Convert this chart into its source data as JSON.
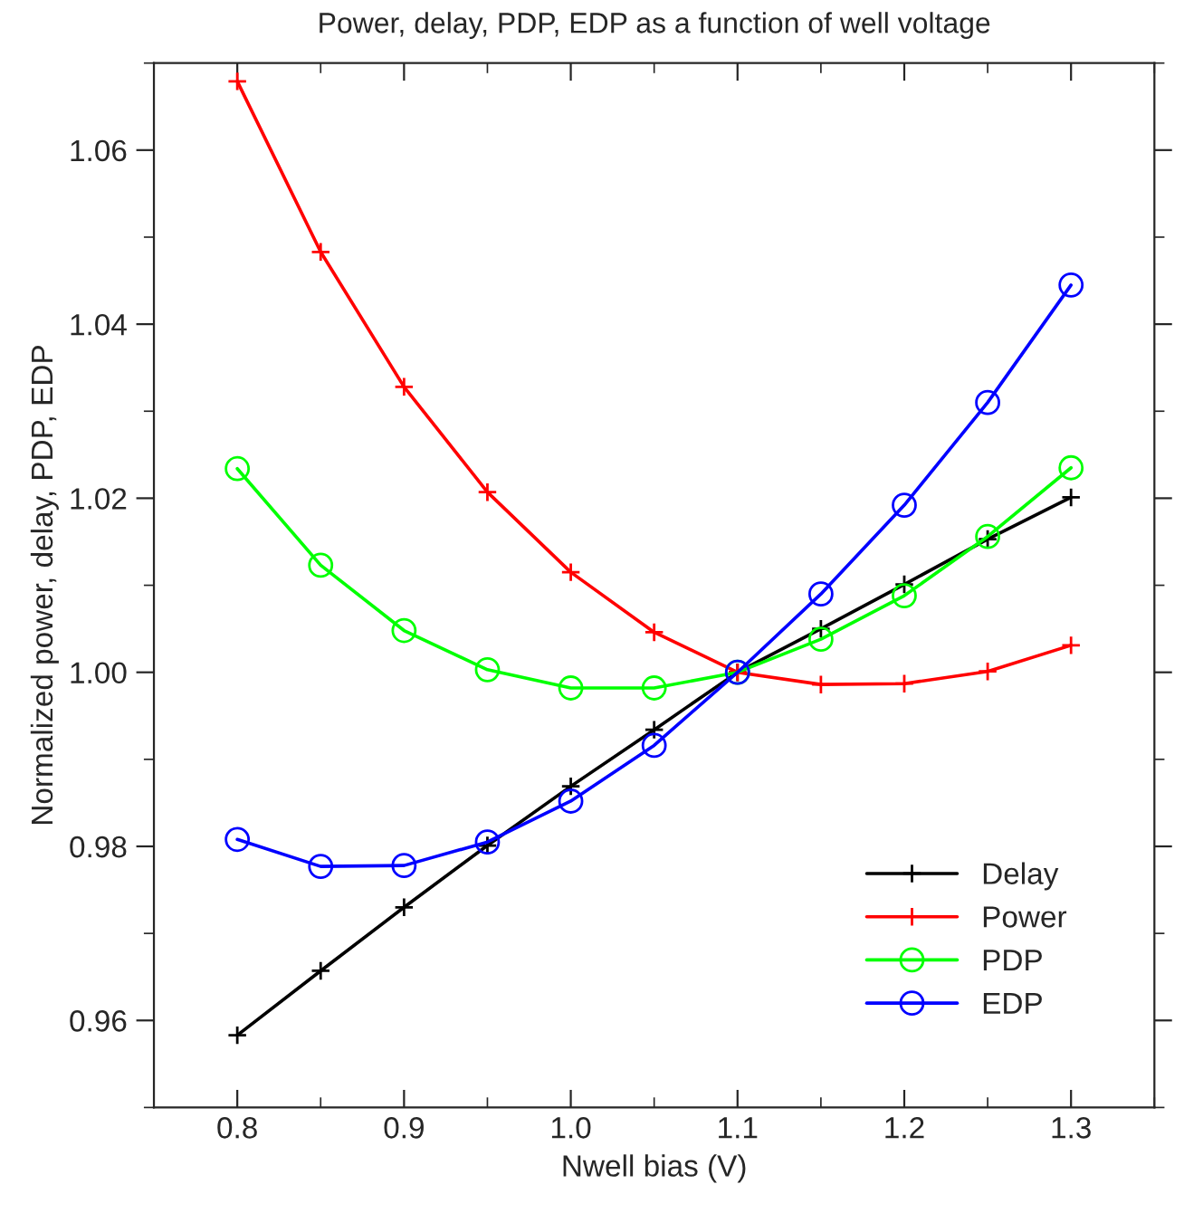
{
  "chart_data": {
    "type": "line",
    "title": "Power, delay, PDP, EDP as a function of well voltage",
    "xlabel": "Nwell bias (V)",
    "ylabel": "Normalized power, delay, PDP, EDP",
    "x": [
      0.8,
      0.85,
      0.9,
      0.95,
      1.0,
      1.05,
      1.1,
      1.15,
      1.2,
      1.25,
      1.3
    ],
    "series": [
      {
        "name": "Delay",
        "color": "#000000",
        "marker": "cross",
        "values": [
          0.9583,
          0.9657,
          0.973,
          0.9801,
          0.9869,
          0.9934,
          1.0,
          1.005,
          1.0101,
          1.0153,
          1.0201
        ]
      },
      {
        "name": "Power",
        "color": "#ff0000",
        "marker": "cross",
        "values": [
          1.0679,
          1.0483,
          1.0328,
          1.0207,
          1.0115,
          1.0046,
          1.0,
          0.9986,
          0.9987,
          1.0001,
          1.0031
        ]
      },
      {
        "name": "PDP",
        "color": "#00ff00",
        "marker": "circle",
        "values": [
          1.0234,
          1.0123,
          1.0048,
          1.0003,
          0.9982,
          0.9982,
          1.0,
          1.0038,
          1.0088,
          1.0156,
          1.0235
        ]
      },
      {
        "name": "EDP",
        "color": "#0000ff",
        "marker": "circle",
        "values": [
          0.9808,
          0.9777,
          0.9778,
          0.9805,
          0.9852,
          0.9916,
          1.0,
          1.009,
          1.0192,
          1.031,
          1.0445
        ]
      }
    ],
    "xlim": [
      0.75,
      1.35
    ],
    "xticks": [
      {
        "value": 0.8,
        "label": "0.8"
      },
      {
        "value": 0.9,
        "label": "0.9"
      },
      {
        "value": 1.0,
        "label": "1.0"
      },
      {
        "value": 1.1,
        "label": "1.1"
      },
      {
        "value": 1.2,
        "label": "1.2"
      },
      {
        "value": 1.3,
        "label": "1.3"
      }
    ],
    "ylim": [
      0.95,
      1.07
    ],
    "yticks": [
      {
        "value": 0.96,
        "label": "0.96"
      },
      {
        "value": 0.98,
        "label": "0.98"
      },
      {
        "value": 1.0,
        "label": "1.00"
      },
      {
        "value": 1.02,
        "label": "1.02"
      },
      {
        "value": 1.04,
        "label": "1.04"
      },
      {
        "value": 1.06,
        "label": "1.06"
      }
    ],
    "grid": false,
    "legend": "bottom right",
    "line_style": "solid"
  }
}
